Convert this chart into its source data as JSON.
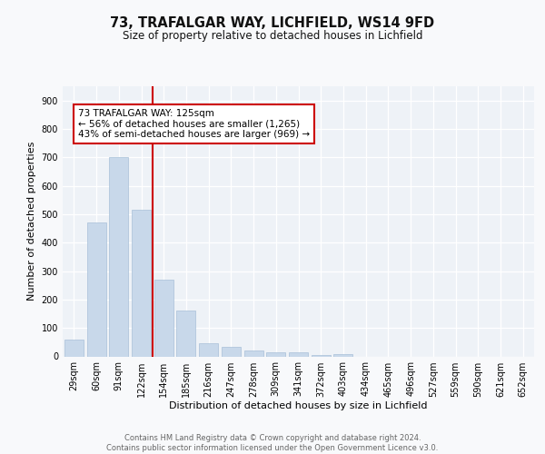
{
  "title_line1": "73, TRAFALGAR WAY, LICHFIELD, WS14 9FD",
  "title_line2": "Size of property relative to detached houses in Lichfield",
  "xlabel": "Distribution of detached houses by size in Lichfield",
  "ylabel": "Number of detached properties",
  "bar_color": "#c8d8ea",
  "bar_edge_color": "#a8c0d8",
  "vline_color": "#cc0000",
  "vline_x": 3.5,
  "categories": [
    "29sqm",
    "60sqm",
    "91sqm",
    "122sqm",
    "154sqm",
    "185sqm",
    "216sqm",
    "247sqm",
    "278sqm",
    "309sqm",
    "341sqm",
    "372sqm",
    "403sqm",
    "434sqm",
    "465sqm",
    "496sqm",
    "527sqm",
    "559sqm",
    "590sqm",
    "621sqm",
    "652sqm"
  ],
  "values": [
    60,
    470,
    700,
    515,
    270,
    160,
    47,
    32,
    20,
    15,
    14,
    6,
    7,
    0,
    0,
    0,
    0,
    0,
    0,
    0,
    0
  ],
  "ylim": [
    0,
    950
  ],
  "yticks": [
    0,
    100,
    200,
    300,
    400,
    500,
    600,
    700,
    800,
    900
  ],
  "annotation_text": "73 TRAFALGAR WAY: 125sqm\n← 56% of detached houses are smaller (1,265)\n43% of semi-detached houses are larger (969) →",
  "annotation_box_facecolor": "#ffffff",
  "annotation_box_edgecolor": "#cc0000",
  "footer_text": "Contains HM Land Registry data © Crown copyright and database right 2024.\nContains public sector information licensed under the Open Government Licence v3.0.",
  "fig_facecolor": "#f8f9fb",
  "ax_facecolor": "#eef2f7",
  "grid_color": "#ffffff",
  "title1_fontsize": 10.5,
  "title2_fontsize": 8.5,
  "ylabel_fontsize": 8,
  "xlabel_fontsize": 8,
  "tick_fontsize": 7,
  "footer_fontsize": 6,
  "ann_fontsize": 7.5
}
